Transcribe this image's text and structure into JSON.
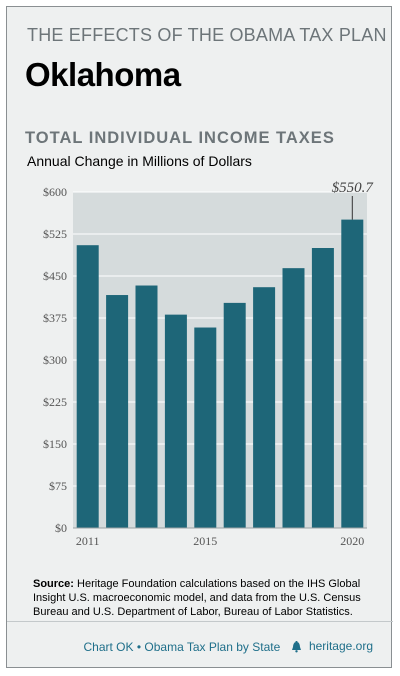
{
  "header": {
    "series_title": "THE EFFECTS OF THE OBAMA TAX PLAN",
    "state": "Oklahoma"
  },
  "chart_data": {
    "type": "bar",
    "title": "TOTAL INDIVIDUAL INCOME TAXES",
    "subtitle": "Annual Change in Millions of Dollars",
    "x": [
      2011,
      2012,
      2013,
      2014,
      2015,
      2016,
      2017,
      2018,
      2019,
      2020
    ],
    "x_tick_labels": [
      "2011",
      "2015",
      "2020"
    ],
    "x_tick_years": [
      2011,
      2015,
      2020
    ],
    "values": [
      505,
      416,
      433,
      381,
      358,
      402,
      430,
      464,
      500,
      550.7
    ],
    "ylim": [
      0,
      600
    ],
    "y_ticks": [
      0,
      75,
      150,
      225,
      300,
      375,
      450,
      525,
      600
    ],
    "y_tick_labels": [
      "$0",
      "$75",
      "$150",
      "$225",
      "$300",
      "$375",
      "$450",
      "$525",
      "$600"
    ],
    "annotation": {
      "text": "$550.7",
      "year": 2020
    },
    "grid": true,
    "bar_color": "#1e6678",
    "grid_color": "#ffffff",
    "plot_background": "#d5dbdc"
  },
  "source": {
    "label": "Source:",
    "text": " Heritage Foundation calculations based on the IHS Global Insight U.S. macroeconomic model, and data from the U.S. Census Bureau and U.S. Department of Labor, Bureau of Labor Statistics."
  },
  "footer": {
    "chart_label": "Chart OK",
    "separator": "•",
    "series_label": "Obama Tax Plan by State",
    "site": "heritage.org",
    "icon": "liberty-bell-icon"
  }
}
